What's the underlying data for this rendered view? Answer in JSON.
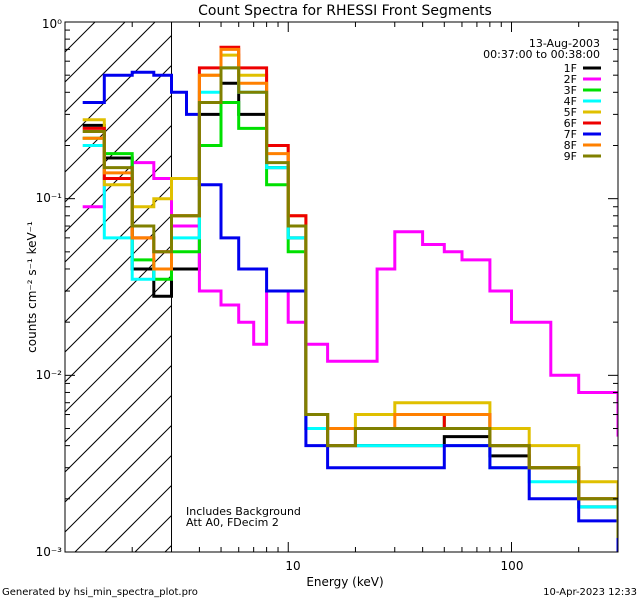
{
  "chart_data": {
    "type": "line",
    "title": "Count Spectra for RHESSI Front Segments",
    "xlabel": "Energy (keV)",
    "ylabel": "counts cm⁻² s⁻¹ keV⁻¹",
    "xscale": "log",
    "yscale": "log",
    "xlim": [
      1,
      300
    ],
    "ylim": [
      0.001,
      1
    ],
    "x_tick_labels": [
      "10",
      "100"
    ],
    "y_tick_labels": [
      "10⁻³",
      "10⁻²",
      "10⁻¹",
      "10⁰"
    ],
    "date": "13-Aug-2003",
    "time_range": "00:37:00 to 00:38:00",
    "annotation_line1": "Includes Background",
    "annotation_line2": "Att A0, FDecim 2",
    "footer_left": "Generated by hsi_min_spectra_plot.pro",
    "footer_right": "10-Apr-2023 12:33",
    "legend_position": "top-right",
    "shaded_region": {
      "x_range": [
        1,
        3
      ],
      "style": "diagonal-hatch"
    },
    "series": [
      {
        "name": "1F",
        "color": "#000000",
        "x": [
          1.2,
          1.5,
          2.0,
          2.5,
          3.0,
          4.0,
          5.0,
          6.0,
          8.0,
          10.0,
          12.0,
          15.0,
          20.0,
          30.0,
          50.0,
          80.0,
          120.0,
          200.0,
          300.0
        ],
        "y": [
          0.26,
          0.17,
          0.04,
          0.028,
          0.04,
          0.3,
          0.45,
          0.3,
          0.15,
          0.06,
          0.005,
          0.004,
          0.004,
          0.004,
          0.0045,
          0.0035,
          0.003,
          0.0018,
          0.0012
        ]
      },
      {
        "name": "2F",
        "color": "#ff00ff",
        "x": [
          1.2,
          1.5,
          2.0,
          2.5,
          3.0,
          4.0,
          5.0,
          6.0,
          7.0,
          8.0,
          10.0,
          12.0,
          15.0,
          20.0,
          25.0,
          30.0,
          40.0,
          50.0,
          60.0,
          80.0,
          100.0,
          150.0,
          200.0,
          300.0
        ],
        "y": [
          0.09,
          0.13,
          0.16,
          0.13,
          0.07,
          0.03,
          0.025,
          0.02,
          0.015,
          0.03,
          0.02,
          0.015,
          0.012,
          0.012,
          0.04,
          0.065,
          0.055,
          0.05,
          0.045,
          0.03,
          0.02,
          0.01,
          0.008,
          0.0045
        ]
      },
      {
        "name": "3F",
        "color": "#00e000",
        "x": [
          1.2,
          1.5,
          2.0,
          2.5,
          3.0,
          4.0,
          5.0,
          6.0,
          8.0,
          10.0,
          12.0,
          15.0,
          20.0,
          30.0,
          50.0,
          80.0,
          120.0,
          200.0,
          300.0
        ],
        "y": [
          0.22,
          0.18,
          0.045,
          0.035,
          0.05,
          0.2,
          0.35,
          0.25,
          0.12,
          0.05,
          0.006,
          0.005,
          0.005,
          0.005,
          0.006,
          0.004,
          0.003,
          0.002,
          0.0012
        ]
      },
      {
        "name": "4F",
        "color": "#00ffff",
        "x": [
          1.2,
          1.5,
          2.0,
          2.5,
          3.0,
          4.0,
          5.0,
          6.0,
          8.0,
          10.0,
          12.0,
          15.0,
          20.0,
          30.0,
          50.0,
          80.0,
          120.0,
          200.0,
          300.0
        ],
        "y": [
          0.2,
          0.06,
          0.035,
          0.04,
          0.06,
          0.4,
          0.55,
          0.4,
          0.15,
          0.06,
          0.005,
          0.004,
          0.004,
          0.004,
          0.004,
          0.003,
          0.0025,
          0.0018,
          0.0012
        ]
      },
      {
        "name": "5F",
        "color": "#e0c000",
        "x": [
          1.2,
          1.5,
          2.0,
          2.5,
          3.0,
          4.0,
          5.0,
          6.0,
          8.0,
          10.0,
          12.0,
          15.0,
          20.0,
          30.0,
          50.0,
          80.0,
          120.0,
          200.0,
          300.0
        ],
        "y": [
          0.28,
          0.12,
          0.09,
          0.1,
          0.13,
          0.5,
          0.65,
          0.5,
          0.2,
          0.08,
          0.006,
          0.005,
          0.006,
          0.007,
          0.007,
          0.005,
          0.004,
          0.0025,
          0.0015
        ]
      },
      {
        "name": "6F",
        "color": "#ee0000",
        "x": [
          1.2,
          1.5,
          2.0,
          2.5,
          3.0,
          4.0,
          5.0,
          6.0,
          8.0,
          10.0,
          12.0,
          15.0,
          20.0,
          30.0,
          50.0,
          80.0,
          120.0,
          200.0,
          300.0
        ],
        "y": [
          0.25,
          0.13,
          0.06,
          0.05,
          0.08,
          0.55,
          0.72,
          0.55,
          0.2,
          0.08,
          0.006,
          0.004,
          0.005,
          0.005,
          0.006,
          0.004,
          0.003,
          0.002,
          0.0012
        ]
      },
      {
        "name": "7F",
        "color": "#0000ee",
        "x": [
          1.2,
          1.5,
          2.0,
          2.5,
          3.0,
          3.5,
          4.0,
          5.0,
          6.0,
          8.0,
          10.0,
          12.0,
          15.0,
          20.0,
          30.0,
          50.0,
          80.0,
          120.0,
          200.0,
          300.0
        ],
        "y": [
          0.35,
          0.5,
          0.52,
          0.5,
          0.4,
          0.3,
          0.12,
          0.06,
          0.04,
          0.03,
          0.03,
          0.004,
          0.003,
          0.003,
          0.003,
          0.004,
          0.003,
          0.002,
          0.0015,
          0.001
        ]
      },
      {
        "name": "8F",
        "color": "#ff8000",
        "x": [
          1.2,
          1.5,
          2.0,
          2.5,
          3.0,
          4.0,
          5.0,
          6.0,
          8.0,
          10.0,
          12.0,
          15.0,
          20.0,
          30.0,
          50.0,
          80.0,
          120.0,
          200.0,
          300.0
        ],
        "y": [
          0.22,
          0.14,
          0.06,
          0.04,
          0.08,
          0.5,
          0.7,
          0.45,
          0.18,
          0.07,
          0.006,
          0.005,
          0.005,
          0.006,
          0.006,
          0.004,
          0.003,
          0.002,
          0.0012
        ]
      },
      {
        "name": "9F",
        "color": "#808000",
        "x": [
          1.2,
          1.5,
          2.0,
          2.5,
          3.0,
          4.0,
          5.0,
          6.0,
          8.0,
          10.0,
          12.0,
          15.0,
          20.0,
          30.0,
          50.0,
          80.0,
          120.0,
          200.0,
          300.0
        ],
        "y": [
          0.24,
          0.15,
          0.07,
          0.05,
          0.08,
          0.35,
          0.55,
          0.4,
          0.16,
          0.07,
          0.006,
          0.004,
          0.005,
          0.005,
          0.005,
          0.004,
          0.003,
          0.002,
          0.0012
        ]
      }
    ]
  }
}
